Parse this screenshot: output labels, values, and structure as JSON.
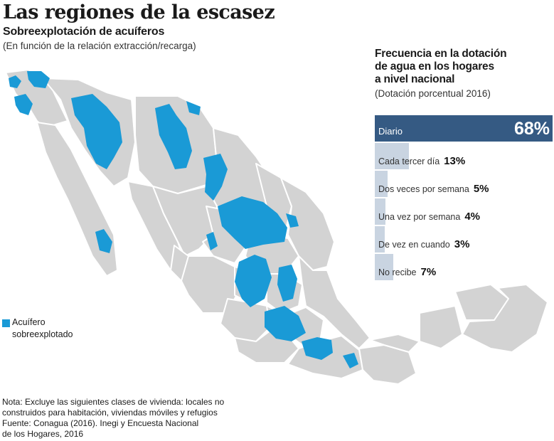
{
  "title": "Las regiones de la escasez",
  "subtitle": "Sobreexplotación de acuíferos",
  "subnote": "(En función de la relación extracción/recarga)",
  "legend": {
    "label": "Acuífero sobreexplotado",
    "color": "#1a9ad6"
  },
  "colors": {
    "state_fill": "#d3d3d3",
    "aquifer": "#1a9ad6",
    "bar_fill": "#c9d4e1",
    "bar_top": "#355a83"
  },
  "note": {
    "lines": [
      "Nota: Excluye las siguientes clases de vivienda: locales no",
      "construidos para habitación, viviendas móviles y refugios",
      "Fuente: Conagua (2016). Inegi y Encuesta Nacional",
      "de los Hogares, 2016"
    ]
  },
  "panel": {
    "title_lines": [
      "Frecuencia en la dotación",
      "de agua en los hogares",
      "a nivel nacional"
    ],
    "subtitle": "(Dotación porcentual 2016)"
  },
  "chart_data": {
    "type": "bar",
    "orientation": "horizontal",
    "title": "Frecuencia en la dotación de agua en los hogares a nivel nacional",
    "subtitle": "(Dotación porcentual 2016)",
    "categories": [
      "Diario",
      "Cada tercer día",
      "Dos veces por semana",
      "Una vez por semana",
      "De vez en cuando",
      "No recibe"
    ],
    "values": [
      68,
      13,
      5,
      4,
      3,
      7
    ],
    "value_labels": [
      "68%",
      "13%",
      "5%",
      "4%",
      "3%",
      "7%"
    ],
    "xlim": [
      0,
      68
    ],
    "grid": false
  }
}
